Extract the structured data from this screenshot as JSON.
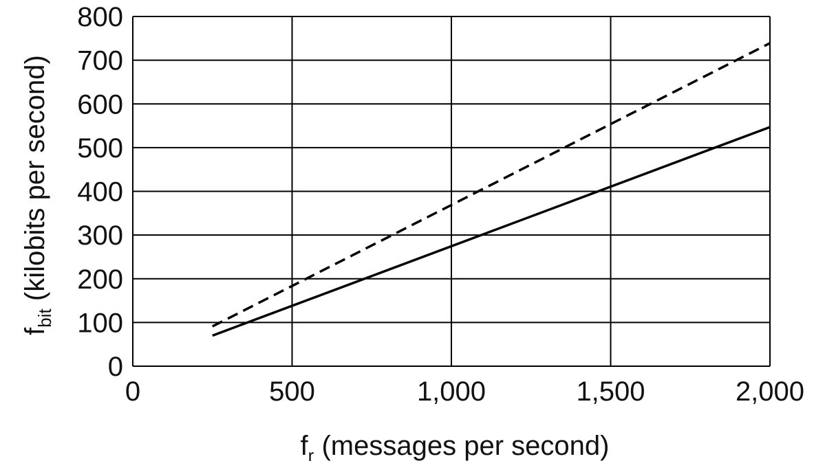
{
  "chart_data": {
    "type": "line",
    "title": "",
    "xlabel": {
      "main": "f",
      "sub": "r",
      "rest": " (messages per second)"
    },
    "ylabel": {
      "main": "f",
      "sub": "bit",
      "rest": " (kilobits per second)"
    },
    "xlim": [
      0,
      2000
    ],
    "ylim": [
      0,
      800
    ],
    "xticks": [
      0,
      500,
      1000,
      1500,
      2000
    ],
    "xtick_labels": [
      "0",
      "500",
      "1,000",
      "1,500",
      "2,000"
    ],
    "yticks": [
      0,
      100,
      200,
      300,
      400,
      500,
      600,
      700,
      800
    ],
    "ytick_labels": [
      "0",
      "100",
      "200",
      "300",
      "400",
      "500",
      "600",
      "700",
      "800"
    ],
    "grid": true,
    "series": [
      {
        "style": "dashed",
        "x": [
          250,
          2000
        ],
        "y": [
          91,
          739
        ]
      },
      {
        "style": "solid",
        "x": [
          250,
          2000
        ],
        "y": [
          70,
          547
        ]
      }
    ],
    "colors": {
      "line": "#000000",
      "grid": "#000000",
      "text": "#111111"
    }
  }
}
